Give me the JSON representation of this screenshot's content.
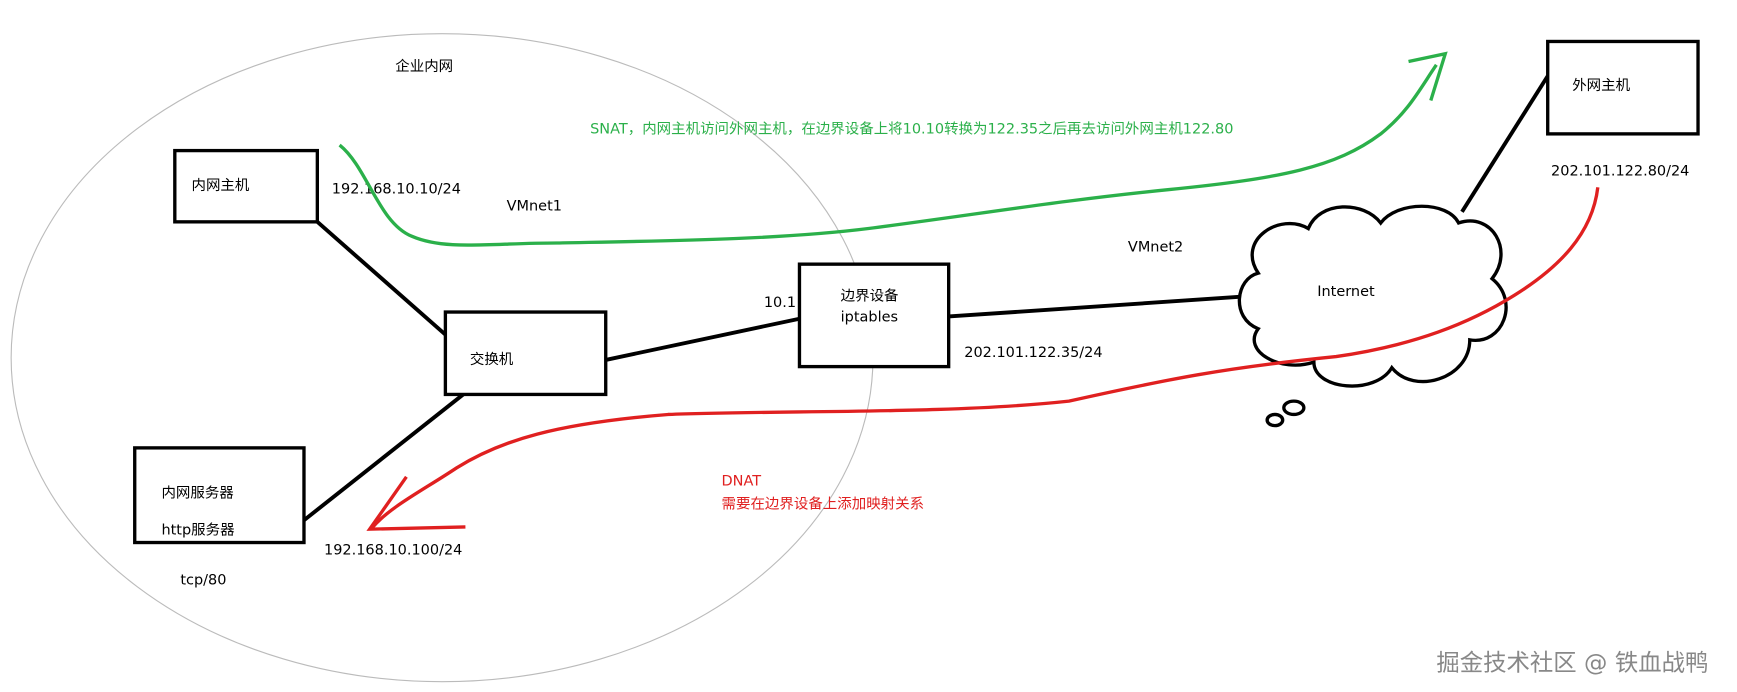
{
  "region": {
    "label": "企业内网"
  },
  "nodes": [
    {
      "lines": [
        "内网主机"
      ]
    },
    {
      "lines": [
        "交换机"
      ]
    },
    {
      "lines": [
        "内网服务器",
        "http服务器"
      ]
    },
    {
      "lines": [
        "边界设备",
        "iptables"
      ]
    },
    {
      "lines": [
        "外网主机"
      ]
    },
    {
      "lines": [
        "Internet"
      ]
    }
  ],
  "labels": [
    "192.168.10.10/24",
    "VMnet1",
    "10.1",
    "VMnet2",
    "202.101.122.35/24",
    "202.101.122.80/24",
    "192.168.10.100/24",
    "tcp/80"
  ],
  "snat": {
    "text": "SNAT，内网主机访问外网主机，在边界设备上将10.10转换为122.35之后再去访问外网主机122.80"
  },
  "dnat": {
    "title": "DNAT",
    "text": "需要在边界设备上添加映射关系"
  },
  "watermark": "掘金技术社区 @ 铁血战鸭"
}
